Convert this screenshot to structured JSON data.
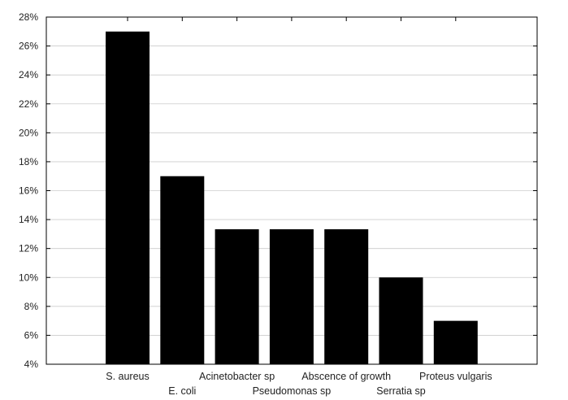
{
  "chart_data": {
    "type": "bar",
    "categories": [
      "S. aureus",
      "E. coli",
      "Acinetobacter sp",
      "Pseudomonas sp",
      "Abscence of growth",
      "Serratia sp",
      "Proteus vulgaris"
    ],
    "values": [
      27,
      17,
      13.33,
      13.33,
      13.33,
      10,
      7
    ],
    "value_unit": "%",
    "ylim": [
      4,
      28
    ],
    "yticks": [
      "4%",
      "6%",
      "8%",
      "10%",
      "12%",
      "14%",
      "16%",
      "18%",
      "20%",
      "22%",
      "24%",
      "26%",
      "28%"
    ],
    "grid": true,
    "legend": "none",
    "bar_color": "#000000",
    "grid_color": "#cccccc"
  }
}
